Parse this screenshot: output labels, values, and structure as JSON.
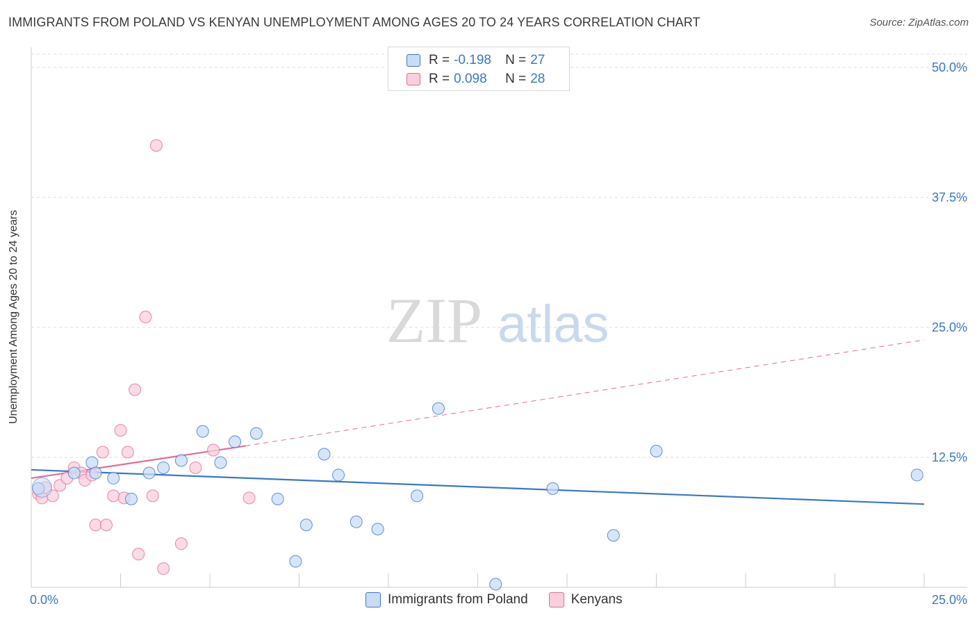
{
  "header": {
    "title": "IMMIGRANTS FROM POLAND VS KENYAN UNEMPLOYMENT AMONG AGES 20 TO 24 YEARS CORRELATION CHART",
    "source": "Source: ZipAtlas.com"
  },
  "watermark": {
    "zip": "ZIP",
    "atlas": "atlas"
  },
  "colors": {
    "poland": "#3a78c9",
    "poland_fill": "#c9dcf5",
    "kenyans": "#e36b98",
    "kenyans_fill": "#f9cfdc",
    "axis_label": "#3a78c9",
    "grid": "#dddddd"
  },
  "legend_top": {
    "rows": [
      {
        "r_label": "R =",
        "r_value": "-0.198",
        "n_label": "N =",
        "n_value": "27"
      },
      {
        "r_label": "R =",
        "r_value": "0.098",
        "n_label": "N =",
        "n_value": "28"
      }
    ]
  },
  "legend_bottom": {
    "items": [
      {
        "label": "Immigrants from Poland"
      },
      {
        "label": "Kenyans"
      }
    ]
  },
  "chart_data": {
    "type": "scatter",
    "title": "IMMIGRANTS FROM POLAND VS KENYAN UNEMPLOYMENT AMONG AGES 20 TO 24 YEARS CORRELATION CHART",
    "xlabel": "",
    "ylabel": "Unemployment Among Ages 20 to 24 years",
    "xlim": [
      0,
      25
    ],
    "ylim": [
      0,
      52
    ],
    "x_tick_labels": [
      "0.0%",
      "25.0%"
    ],
    "y_ticks": [
      12.5,
      25.0,
      37.5,
      50.0
    ],
    "y_tick_labels": [
      "12.5%",
      "25.0%",
      "37.5%",
      "50.0%"
    ],
    "grid": true,
    "series": [
      {
        "name": "Immigrants from Poland",
        "color": "#3a78c9",
        "r": -0.198,
        "n": 27,
        "points": [
          [
            0.2,
            9.5
          ],
          [
            1.2,
            11.0
          ],
          [
            1.7,
            12.0
          ],
          [
            1.8,
            11.0
          ],
          [
            2.3,
            10.5
          ],
          [
            2.8,
            8.5
          ],
          [
            3.3,
            11.0
          ],
          [
            3.7,
            11.5
          ],
          [
            4.2,
            12.2
          ],
          [
            4.8,
            15.0
          ],
          [
            5.3,
            12.0
          ],
          [
            5.7,
            14.0
          ],
          [
            6.3,
            14.8
          ],
          [
            6.9,
            8.5
          ],
          [
            7.4,
            2.5
          ],
          [
            7.7,
            6.0
          ],
          [
            8.2,
            12.8
          ],
          [
            8.6,
            10.8
          ],
          [
            9.1,
            6.3
          ],
          [
            9.7,
            5.6
          ],
          [
            10.8,
            8.8
          ],
          [
            11.4,
            17.2
          ],
          [
            13.0,
            0.3
          ],
          [
            14.6,
            9.5
          ],
          [
            16.3,
            5.0
          ],
          [
            17.5,
            13.1
          ],
          [
            24.8,
            10.8
          ]
        ],
        "trend": {
          "x": [
            0,
            25
          ],
          "y": [
            11.3,
            8.0
          ],
          "style": "solid"
        }
      },
      {
        "name": "Kenyans",
        "color": "#e36b98",
        "r": 0.098,
        "n": 28,
        "points": [
          [
            0.2,
            9.0
          ],
          [
            0.3,
            8.6
          ],
          [
            0.4,
            9.6
          ],
          [
            0.6,
            8.8
          ],
          [
            0.8,
            9.8
          ],
          [
            1.0,
            10.5
          ],
          [
            1.2,
            11.5
          ],
          [
            1.4,
            11.0
          ],
          [
            1.5,
            10.3
          ],
          [
            1.7,
            10.8
          ],
          [
            1.8,
            6.0
          ],
          [
            2.0,
            13.0
          ],
          [
            2.1,
            6.0
          ],
          [
            2.3,
            8.8
          ],
          [
            2.5,
            15.1
          ],
          [
            2.6,
            8.6
          ],
          [
            2.7,
            13.0
          ],
          [
            2.9,
            19.0
          ],
          [
            3.0,
            3.2
          ],
          [
            3.2,
            26.0
          ],
          [
            3.4,
            8.8
          ],
          [
            3.5,
            42.5
          ],
          [
            3.7,
            1.8
          ],
          [
            4.2,
            4.2
          ],
          [
            4.6,
            11.5
          ],
          [
            5.1,
            13.2
          ],
          [
            6.1,
            8.6
          ],
          [
            0.2,
            9.5
          ]
        ],
        "trend_solid": {
          "x": [
            0,
            6.0
          ],
          "y": [
            10.5,
            13.6
          ]
        },
        "trend_dashed": {
          "x": [
            6.0,
            25
          ],
          "y": [
            13.6,
            23.8
          ]
        }
      }
    ]
  }
}
